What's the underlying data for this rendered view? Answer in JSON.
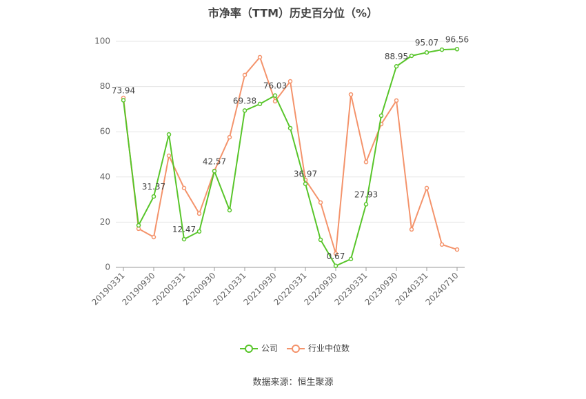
{
  "chart_data": {
    "type": "line",
    "title": "市净率（TTM）历史百分位（%）",
    "source": "数据来源：恒生聚源",
    "categories": [
      "20190331",
      null,
      "20190930",
      null,
      "20200331",
      null,
      "20200930",
      null,
      "20210331",
      null,
      "20210930",
      null,
      "20220331",
      null,
      "20220930",
      null,
      "20230331",
      null,
      "20230930",
      null,
      "20240331",
      null,
      "20240710"
    ],
    "series": [
      {
        "name": "公司",
        "color": "#58c52a",
        "values": [
          73.94,
          18.6,
          31.37,
          58.8,
          12.47,
          15.9,
          42.57,
          25.3,
          69.38,
          72.3,
          76.03,
          61.6,
          36.97,
          12.2,
          0.67,
          3.7,
          27.93,
          67.1,
          88.95,
          93.6,
          95.07,
          96.3,
          96.56
        ],
        "value_labels": [
          "73.94",
          null,
          "31.37",
          null,
          "12.47",
          null,
          "42.57",
          null,
          "69.38",
          null,
          "76.03",
          null,
          "36.97",
          null,
          "0.67",
          null,
          "27.93",
          null,
          "88.95",
          null,
          "95.07",
          null,
          "96.56"
        ]
      },
      {
        "name": "行业中位数",
        "color": "#f4936b",
        "values": [
          75.0,
          17.1,
          13.4,
          49.4,
          35.1,
          23.8,
          42.7,
          57.6,
          85.1,
          93.0,
          73.5,
          82.3,
          38.7,
          28.7,
          6.1,
          76.5,
          46.6,
          63.4,
          73.8,
          16.8,
          35.1,
          10.1,
          7.9
        ]
      }
    ],
    "ylim": [
      0,
      100
    ],
    "yticks": [
      0,
      20,
      40,
      60,
      80,
      100
    ],
    "grid": true,
    "legend": "bottom"
  }
}
